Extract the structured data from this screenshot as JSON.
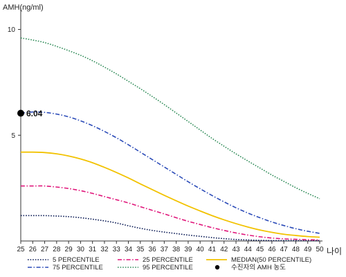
{
  "chart_data": {
    "type": "line",
    "title": "",
    "ylabel": "AMH(ng/ml)",
    "xlabel": "나이",
    "xlim": [
      25,
      50
    ],
    "ylim": [
      0,
      11
    ],
    "x_ticks": [
      25,
      26,
      27,
      28,
      29,
      30,
      31,
      32,
      33,
      34,
      35,
      36,
      37,
      38,
      39,
      40,
      41,
      42,
      43,
      44,
      45,
      46,
      47,
      48,
      49,
      50
    ],
    "y_ticks": [
      5,
      10
    ],
    "grid": false,
    "legend_placement": "bottom",
    "series": [
      {
        "name": "5 PERCENTILE",
        "color": "#0a1a55",
        "dash": "dotted",
        "x": [
          25,
          26,
          27,
          28,
          29,
          30,
          31,
          32,
          33,
          34,
          35,
          36,
          37,
          38,
          39,
          40,
          41,
          42,
          43,
          44,
          45,
          46,
          47,
          48,
          49,
          50
        ],
        "values": [
          1.2,
          1.2,
          1.2,
          1.18,
          1.15,
          1.1,
          1.03,
          0.95,
          0.85,
          0.72,
          0.6,
          0.5,
          0.42,
          0.35,
          0.28,
          0.22,
          0.16,
          0.11,
          0.07,
          0.05,
          0.03,
          0.02,
          0.02,
          0.02,
          0.02,
          0.02
        ]
      },
      {
        "name": "25 PERCENTILE",
        "color": "#e0157a",
        "dash": "dashdot",
        "x": [
          25,
          26,
          27,
          28,
          29,
          30,
          31,
          32,
          33,
          34,
          35,
          36,
          37,
          38,
          39,
          40,
          41,
          42,
          43,
          44,
          45,
          46,
          47,
          48,
          49,
          50
        ],
        "values": [
          2.6,
          2.6,
          2.6,
          2.55,
          2.48,
          2.38,
          2.25,
          2.1,
          1.95,
          1.8,
          1.62,
          1.45,
          1.28,
          1.1,
          0.93,
          0.78,
          0.63,
          0.5,
          0.38,
          0.28,
          0.2,
          0.14,
          0.1,
          0.08,
          0.06,
          0.05
        ]
      },
      {
        "name": "MEDIAN(50 PERCENTILE)",
        "color": "#f2c200",
        "dash": "solid",
        "x": [
          25,
          26,
          27,
          28,
          29,
          30,
          31,
          32,
          33,
          34,
          35,
          36,
          37,
          38,
          39,
          40,
          41,
          42,
          43,
          44,
          45,
          46,
          47,
          48,
          49,
          50
        ],
        "values": [
          4.2,
          4.2,
          4.18,
          4.12,
          4.02,
          3.88,
          3.7,
          3.48,
          3.24,
          2.98,
          2.7,
          2.43,
          2.16,
          1.9,
          1.65,
          1.42,
          1.2,
          1.0,
          0.82,
          0.66,
          0.52,
          0.41,
          0.32,
          0.26,
          0.21,
          0.18
        ]
      },
      {
        "name": "75 PERCENTILE",
        "color": "#2b4bb8",
        "dash": "dashdot",
        "x": [
          25,
          26,
          27,
          28,
          29,
          30,
          31,
          32,
          33,
          34,
          35,
          36,
          37,
          38,
          39,
          40,
          41,
          42,
          43,
          44,
          45,
          46,
          47,
          48,
          49,
          50
        ],
        "values": [
          6.04,
          6.1,
          6.08,
          6.0,
          5.87,
          5.68,
          5.45,
          5.18,
          4.88,
          4.55,
          4.2,
          3.85,
          3.5,
          3.15,
          2.8,
          2.47,
          2.15,
          1.85,
          1.57,
          1.32,
          1.1,
          0.9,
          0.73,
          0.58,
          0.46,
          0.36
        ]
      },
      {
        "name": "95 PERCENTILE",
        "color": "#2e8b57",
        "dash": "dotted",
        "x": [
          25,
          26,
          27,
          28,
          29,
          30,
          31,
          32,
          33,
          34,
          35,
          36,
          37,
          38,
          39,
          40,
          41,
          42,
          43,
          44,
          45,
          46,
          47,
          48,
          49,
          50
        ],
        "values": [
          9.6,
          9.5,
          9.38,
          9.2,
          9.0,
          8.78,
          8.52,
          8.22,
          7.9,
          7.55,
          7.2,
          6.83,
          6.45,
          6.05,
          5.65,
          5.25,
          4.85,
          4.48,
          4.12,
          3.78,
          3.45,
          3.12,
          2.82,
          2.52,
          2.25,
          2.0
        ]
      }
    ],
    "marker": {
      "name": "수진자의 AMH 농도",
      "x": 25,
      "y": 6.04,
      "label": "6.04",
      "color": "#000000"
    },
    "legend_order": [
      "5 PERCENTILE",
      "25 PERCENTILE",
      "MEDIAN(50 PERCENTILE)",
      "75 PERCENTILE",
      "95 PERCENTILE",
      "수진자의 AMH 농도"
    ]
  }
}
